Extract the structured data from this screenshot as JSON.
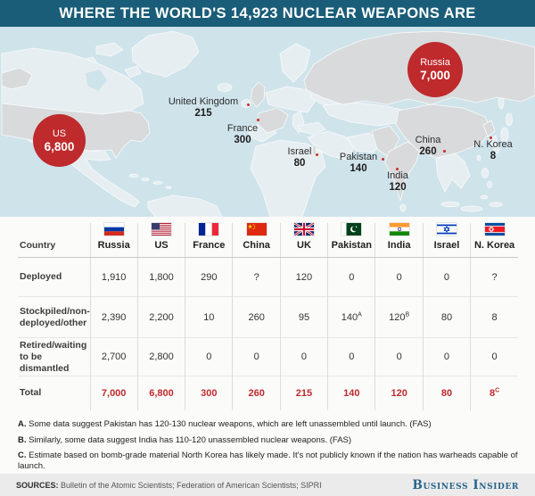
{
  "title": "WHERE THE WORLD'S 14,923 NUCLEAR WEAPONS ARE",
  "map": {
    "bubbles": [
      {
        "id": "us",
        "country": "US",
        "count": "6,800"
      },
      {
        "id": "russia",
        "country": "Russia",
        "count": "7,000"
      }
    ],
    "labels": [
      {
        "id": "uk",
        "country": "United Kingdom",
        "count": "215"
      },
      {
        "id": "france",
        "country": "France",
        "count": "300"
      },
      {
        "id": "israel",
        "country": "Israel",
        "count": "80"
      },
      {
        "id": "pakistan",
        "country": "Pakistan",
        "count": "140"
      },
      {
        "id": "india",
        "country": "India",
        "count": "120"
      },
      {
        "id": "china",
        "country": "China",
        "count": "260"
      },
      {
        "id": "nkorea",
        "country": "N. Korea",
        "count": "8"
      }
    ]
  },
  "table": {
    "corner_label": "Country",
    "columns": [
      {
        "id": "russia",
        "label": "Russia"
      },
      {
        "id": "us",
        "label": "US"
      },
      {
        "id": "france",
        "label": "France"
      },
      {
        "id": "china",
        "label": "China"
      },
      {
        "id": "uk",
        "label": "UK"
      },
      {
        "id": "pakistan",
        "label": "Pakistan"
      },
      {
        "id": "india",
        "label": "India"
      },
      {
        "id": "israel",
        "label": "Israel"
      },
      {
        "id": "nkorea",
        "label": "N. Korea"
      }
    ],
    "rows": [
      {
        "slug": "deployed",
        "label": "Deployed",
        "is_total": false,
        "values": [
          "1,910",
          "1,800",
          "290",
          "?",
          "120",
          "0",
          "0",
          "0",
          "?"
        ]
      },
      {
        "slug": "stockpiled",
        "label": "Stockpiled/non-deployed/other",
        "is_total": false,
        "values": [
          "2,390",
          "2,200",
          "10",
          "260",
          "95",
          "140^A",
          "120^B",
          "80",
          "8"
        ]
      },
      {
        "slug": "retired",
        "label": "Retired/waiting to be dismantled",
        "is_total": false,
        "values": [
          "2,700",
          "2,800",
          "0",
          "0",
          "0",
          "0",
          "0",
          "0",
          "0"
        ]
      },
      {
        "slug": "total",
        "label": "Total",
        "is_total": true,
        "values": [
          "7,000",
          "6,800",
          "300",
          "260",
          "215",
          "140",
          "120",
          "80",
          "8^C"
        ]
      }
    ]
  },
  "footnotes": [
    {
      "prefix": "A.",
      "text": "Some data suggest Pakistan has 120-130 nuclear weapons, which are left unassembled until launch. (FAS)"
    },
    {
      "prefix": "B.",
      "text": "Similarly, some data suggest India has 110-120 unassembled nuclear weapons. (FAS)"
    },
    {
      "prefix": "C.",
      "text": "Estimate based on bomb-grade material North Korea has likely made. It's not publicly known if the nation has warheads capable of launch."
    }
  ],
  "footer": {
    "sources_label": "SOURCES:",
    "sources_text": "Bulletin of the Atomic Scientists; Federation of American Scientists; SIPRI",
    "brand": "Business Insider"
  },
  "colors": {
    "accent_red": "#bf2a2d",
    "title_teal": "#1a5d78",
    "ocean_blue": "#cfe3eb",
    "brand_blue": "#27648a"
  },
  "chart_data": {
    "type": "table",
    "title": "WHERE THE WORLD'S 14,923 NUCLEAR WEAPONS ARE",
    "total_nuclear_weapons": 14923,
    "categories": [
      "Russia",
      "US",
      "France",
      "China",
      "UK",
      "Pakistan",
      "India",
      "Israel",
      "N. Korea"
    ],
    "series": [
      {
        "name": "Deployed",
        "values": [
          1910,
          1800,
          290,
          null,
          120,
          0,
          0,
          0,
          null
        ],
        "display": [
          "1,910",
          "1,800",
          "290",
          "?",
          "120",
          "0",
          "0",
          "0",
          "?"
        ]
      },
      {
        "name": "Stockpiled/non-deployed/other",
        "values": [
          2390,
          2200,
          10,
          260,
          95,
          140,
          120,
          80,
          8
        ],
        "display": [
          "2,390",
          "2,200",
          "10",
          "260",
          "95",
          "140ᴬ",
          "120ᴮ",
          "80",
          "8"
        ]
      },
      {
        "name": "Retired/waiting to be dismantled",
        "values": [
          2700,
          2800,
          0,
          0,
          0,
          0,
          0,
          0,
          0
        ]
      },
      {
        "name": "Total",
        "values": [
          7000,
          6800,
          300,
          260,
          215,
          140,
          120,
          80,
          8
        ],
        "display": [
          "7,000",
          "6,800",
          "300",
          "260",
          "215",
          "140",
          "120",
          "80",
          "8ᶜ"
        ]
      }
    ],
    "map_annotations": [
      {
        "country": "US",
        "total": 6800,
        "style": "bubble"
      },
      {
        "country": "Russia",
        "total": 7000,
        "style": "bubble"
      },
      {
        "country": "United Kingdom",
        "total": 215,
        "style": "label"
      },
      {
        "country": "France",
        "total": 300,
        "style": "label"
      },
      {
        "country": "Israel",
        "total": 80,
        "style": "label"
      },
      {
        "country": "Pakistan",
        "total": 140,
        "style": "label"
      },
      {
        "country": "India",
        "total": 120,
        "style": "label"
      },
      {
        "country": "China",
        "total": 260,
        "style": "label"
      },
      {
        "country": "N. Korea",
        "total": 8,
        "style": "label"
      }
    ]
  }
}
